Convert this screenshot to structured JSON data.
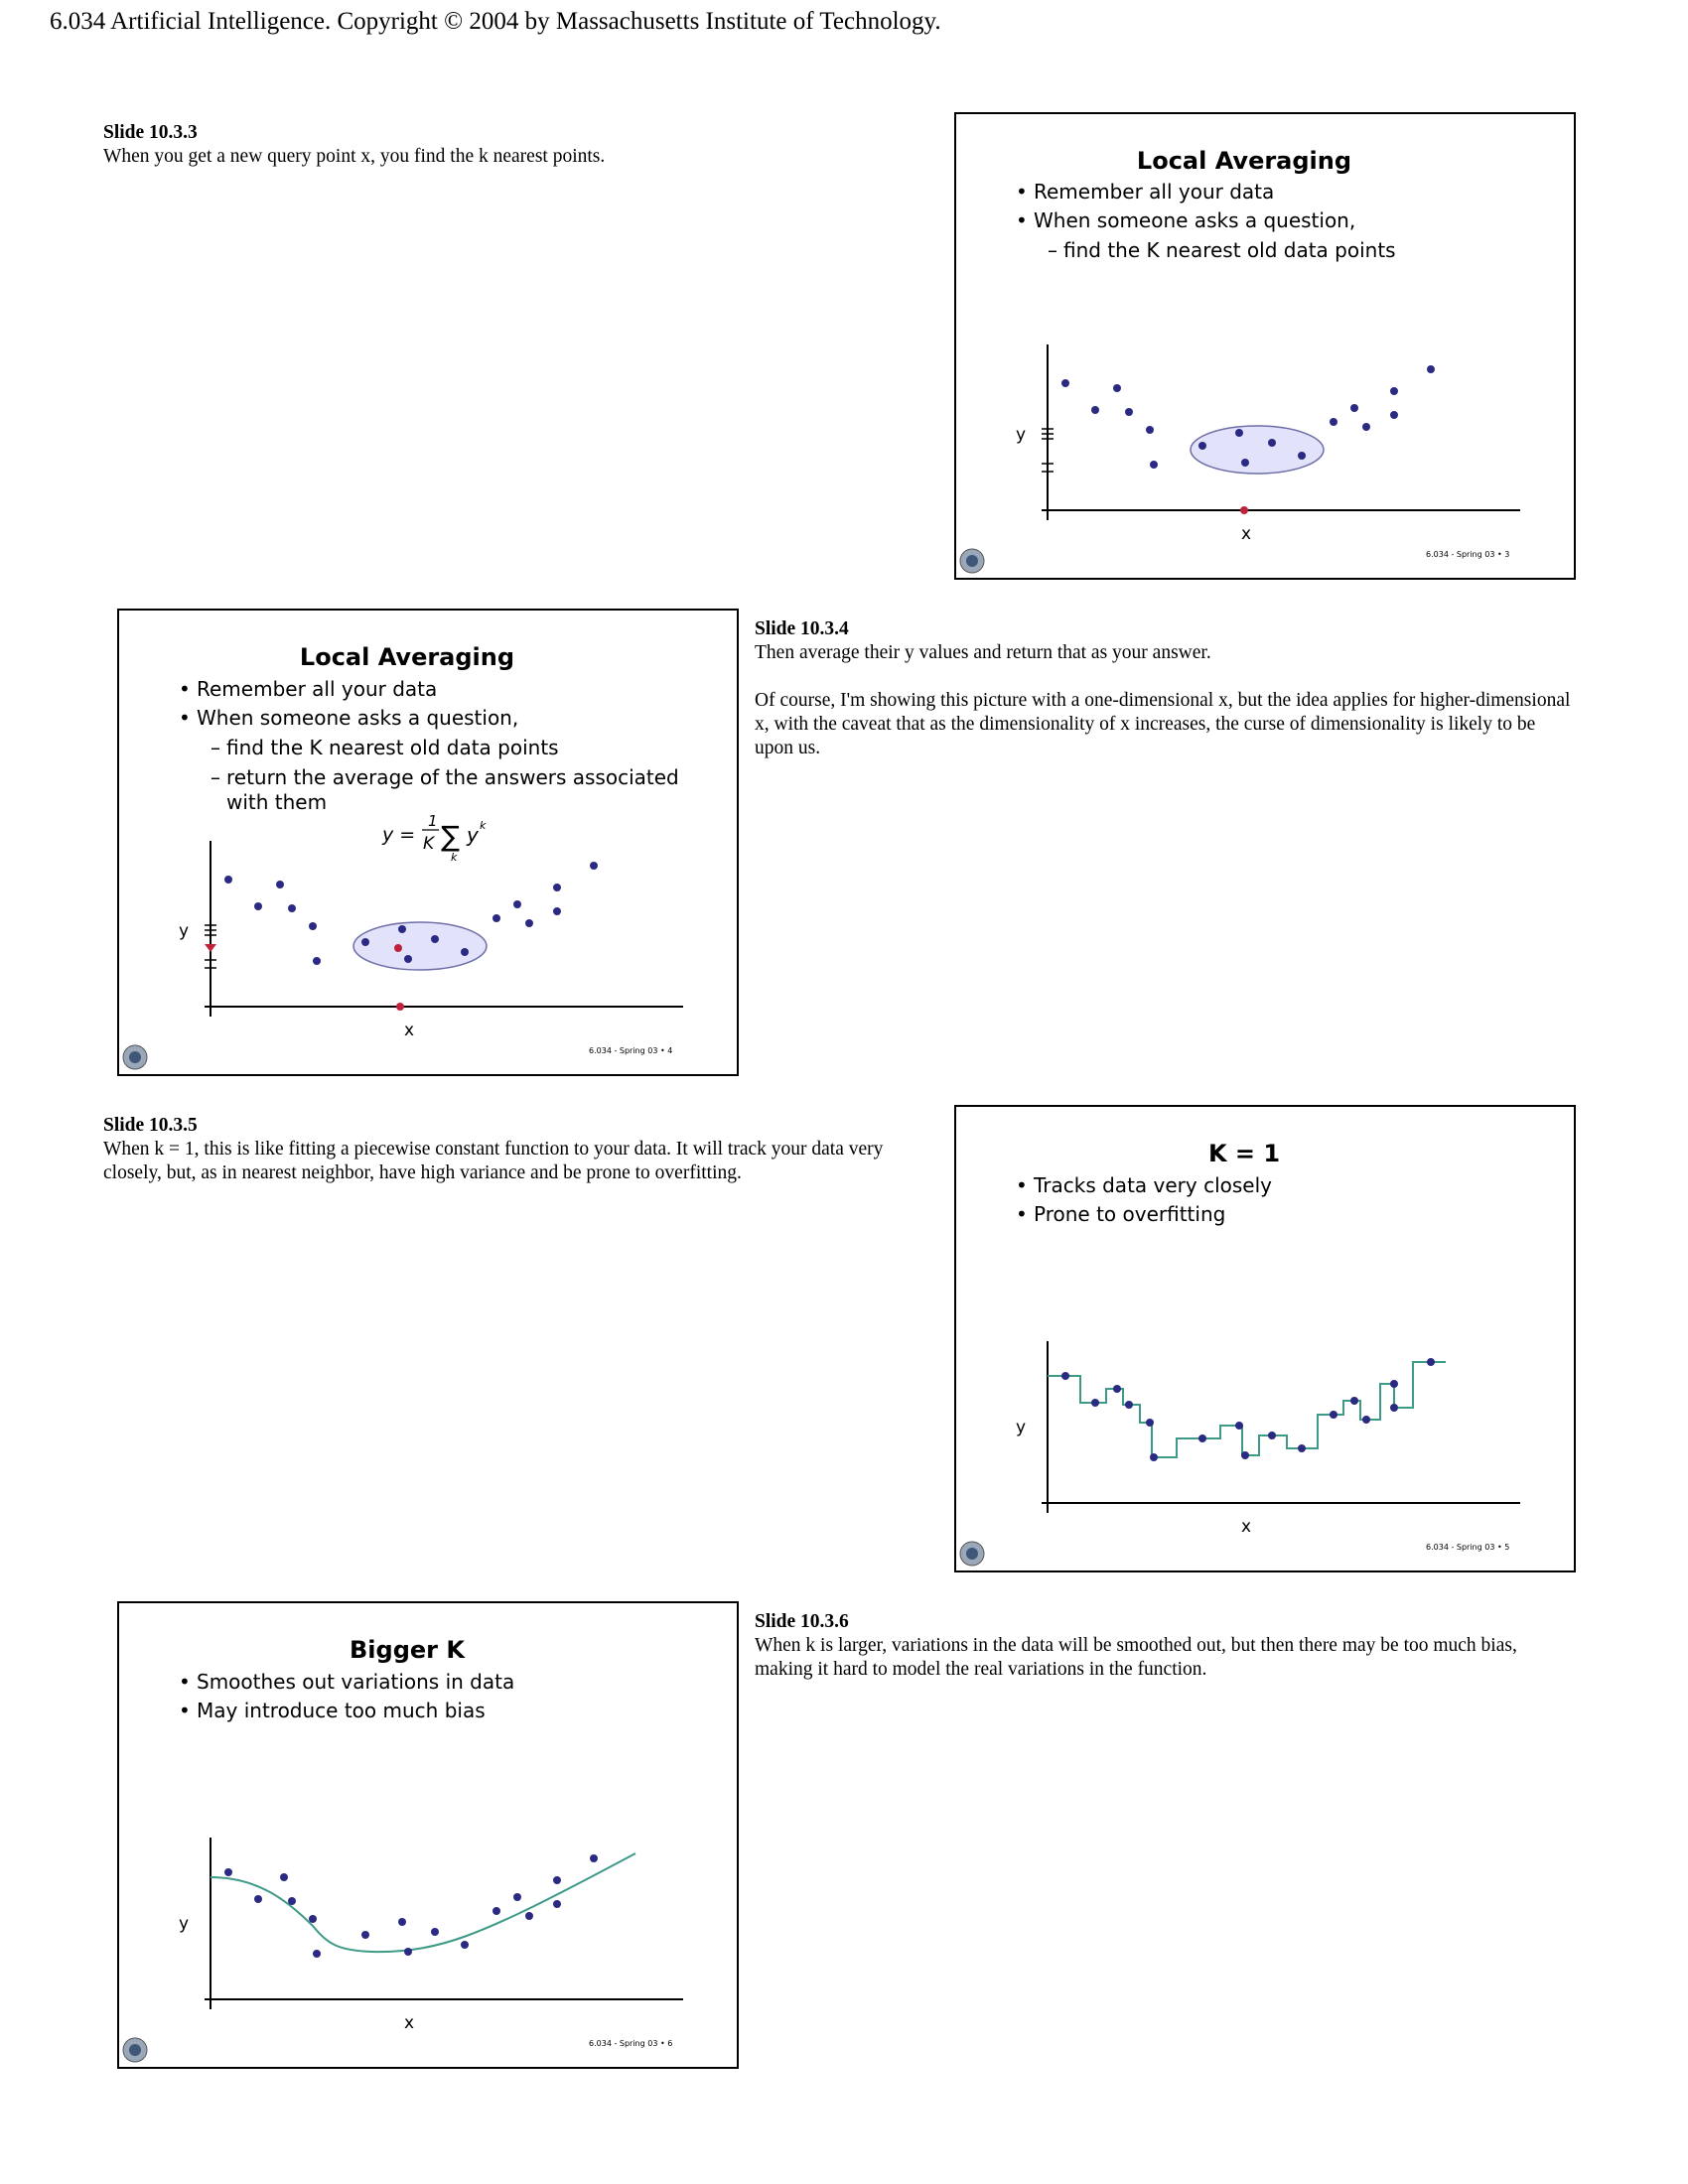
{
  "header": "6.034 Artificial Intelligence. Copyright © 2004 by Massachusetts Institute of Technology.",
  "colors": {
    "dot": "#2b2a82",
    "query": "#c0213b",
    "ellipse_fill": "#e2e2fa",
    "ellipse_stroke": "#6d6da8",
    "curve": "#3d9a86",
    "axis": "#000000"
  },
  "notes": [
    {
      "title": "Slide 10.3.3",
      "paragraphs": [
        "When you get a new query point x, you find the k nearest points."
      ]
    },
    {
      "title": "Slide 10.3.4",
      "paragraphs": [
        "Then average their y values and return that as your answer.",
        "Of course, I'm showing this picture with a one-dimensional x, but the idea applies for higher-dimensional x, with the caveat that as the dimensionality of x increases, the curse of dimensionality is likely to be upon us."
      ]
    },
    {
      "title": "Slide 10.3.5",
      "paragraphs": [
        "When k = 1, this is like fitting a piecewise constant function to your data. It will track your data very closely, but, as in nearest neighbor, have high variance and be prone to overfitting."
      ]
    },
    {
      "title": "Slide 10.3.6",
      "paragraphs": [
        "When k is larger, variations in the data will be smoothed out, but then there may be too much bias, making it hard to model the real variations in the function."
      ]
    }
  ],
  "slides": [
    {
      "title": "Local Averaging",
      "bullets": [
        "Remember all your data",
        "When someone asks a question,"
      ],
      "subs": [
        "find the K nearest old data points"
      ],
      "ylabel": "y",
      "xlabel": "x",
      "footer": "6.034 - Spring 03 • 3",
      "speaker_icon": "speaker-icon"
    },
    {
      "title": "Local Averaging",
      "bullets": [
        "Remember all your data",
        "When someone asks a question,"
      ],
      "subs": [
        "find the K nearest old data points",
        "return the average of the answers associated",
        "with them"
      ],
      "formula": {
        "lhs": "y =",
        "num": "1",
        "den": "K",
        "sum": "∑",
        "term": "y",
        "sup": "k",
        "sub": "k"
      },
      "ylabel": "y",
      "xlabel": "x",
      "footer": "6.034 - Spring 03 • 4",
      "speaker_icon": "speaker-icon"
    },
    {
      "title": "K = 1",
      "bullets": [
        "Tracks data very closely",
        "Prone to overfitting"
      ],
      "ylabel": "y",
      "xlabel": "x",
      "footer": "6.034 - Spring 03 • 5",
      "speaker_icon": "speaker-icon"
    },
    {
      "title": "Bigger K",
      "bullets": [
        "Smoothes out variations in data",
        "May introduce too much bias"
      ],
      "ylabel": "y",
      "xlabel": "x",
      "footer": "6.034 - Spring 03 • 6",
      "speaker_icon": "speaker-icon"
    }
  ]
}
